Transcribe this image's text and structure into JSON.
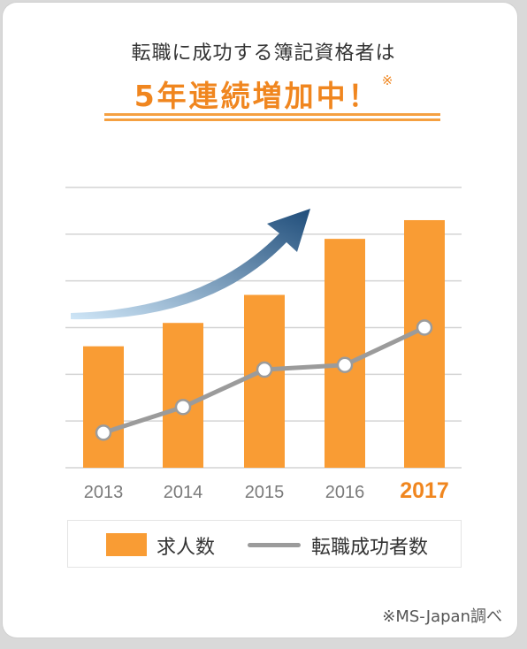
{
  "header": {
    "title_line1": "転職に成功する簿記資格者は",
    "title_line2": "5年連続増加中！",
    "title_mark": "※"
  },
  "source_note": "※MS-Japan調べ",
  "colors": {
    "bar": "#f99c34",
    "line": "#9b9b9b",
    "highlight_year": "#f0861f",
    "arrow_start": "#cfe6f7",
    "arrow_end": "#1f4d7a"
  },
  "legend": {
    "bar_label": "求人数",
    "line_label": "転職成功者数"
  },
  "chart_data": {
    "type": "bar",
    "categories": [
      "2013",
      "2014",
      "2015",
      "2016",
      "2017"
    ],
    "highlight_category": "2017",
    "ylim": [
      0,
      6
    ],
    "grid": true,
    "series": [
      {
        "name": "求人数",
        "type": "bar",
        "values": [
          2.6,
          3.1,
          3.7,
          4.9,
          5.3
        ]
      },
      {
        "name": "転職成功者数",
        "type": "line",
        "values": [
          0.75,
          1.3,
          2.1,
          2.2,
          3.0
        ]
      }
    ],
    "decoration": "upward-trend-arrow"
  }
}
